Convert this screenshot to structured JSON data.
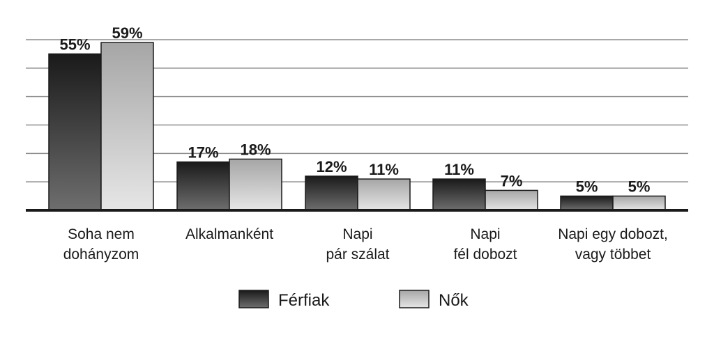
{
  "chart_data": {
    "type": "bar",
    "categories": [
      [
        "Soha nem",
        "dohányzom"
      ],
      [
        "Alkalmanként"
      ],
      [
        "Napi",
        "pár szálat"
      ],
      [
        "Napi",
        "fél dobozt"
      ],
      [
        "Napi egy dobozt,",
        "vagy többet"
      ]
    ],
    "series": [
      {
        "name": "Férfiak",
        "values": [
          55,
          17,
          12,
          11,
          5
        ],
        "labels": [
          "55%",
          "17%",
          "12%",
          "11%",
          "5%"
        ]
      },
      {
        "name": "Nők",
        "values": [
          59,
          18,
          11,
          7,
          5
        ],
        "labels": [
          "59%",
          "18%",
          "11%",
          "7%",
          "5%"
        ]
      }
    ],
    "ylim": [
      0,
      60
    ],
    "grid": true,
    "legend_position": "bottom",
    "colors": {
      "series0_top": "#1a1a1a",
      "series0_bottom": "#6e6e6e",
      "series1_top": "#a6a6a6",
      "series1_bottom": "#e6e6e6",
      "grid": "#8c8c8c",
      "axis": "#1a1a1a"
    }
  }
}
